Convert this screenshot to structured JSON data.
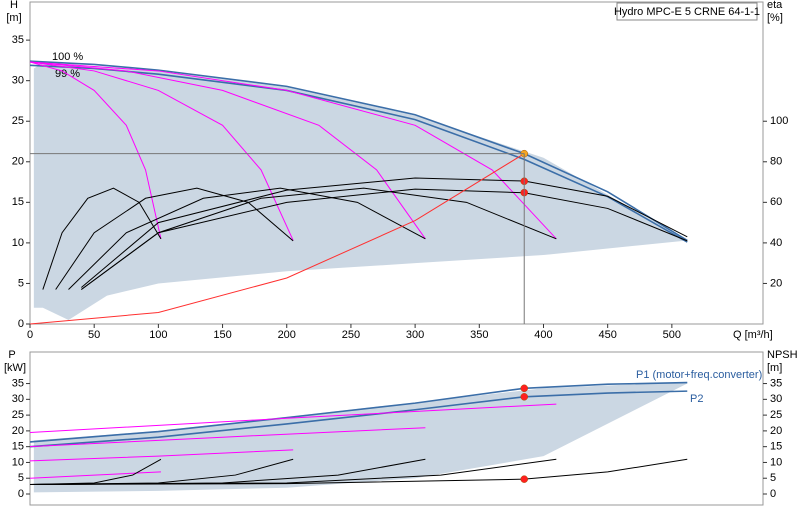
{
  "chart_data": [
    {
      "type": "line",
      "title": "Hydro MPC-E 5 CRNE 64-1-1",
      "ylabel": "H",
      "yunit": "[m]",
      "y2label": "eta",
      "y2unit": "[%]",
      "xlabel": "Q [m³/h]",
      "xlim": [
        0,
        571
      ],
      "xticks": [
        0,
        50,
        100,
        150,
        200,
        250,
        300,
        350,
        400,
        450,
        500
      ],
      "ylim": [
        0,
        39.7
      ],
      "yticks": [
        0,
        5,
        10,
        15,
        20,
        25,
        30,
        35
      ],
      "y2lim": [
        0,
        158.8
      ],
      "y2ticks": [
        20,
        40,
        60,
        80,
        100
      ],
      "duty_point": {
        "x": 385,
        "y": 21
      },
      "series": [
        {
          "style": "area",
          "color": "#cbd7e3",
          "x": [
            3,
            10,
            30,
            60,
            100,
            200,
            300,
            400,
            512
          ],
          "values": [
            31.5,
            32.2,
            32,
            31.6,
            31.2,
            29.2,
            25.7,
            20.5,
            10.3
          ],
          "lower": [
            2,
            2,
            0.5,
            3.5,
            5,
            6.5,
            7.5,
            8.5,
            10.3
          ]
        },
        {
          "name": "100 %",
          "style": "line",
          "color": "#3b6ea8",
          "x": [
            0,
            50,
            100,
            200,
            300,
            385,
            450,
            512
          ],
          "values": [
            32.4,
            32.0,
            31.3,
            29.3,
            25.8,
            21.0,
            16.3,
            10.3
          ]
        },
        {
          "name": "99 %",
          "style": "line",
          "color": "#3b6ea8",
          "x": [
            0,
            50,
            100,
            200,
            300,
            385,
            450,
            512
          ],
          "values": [
            31.9,
            31.5,
            30.8,
            28.8,
            25.2,
            20.3,
            15.7,
            10.1
          ]
        },
        {
          "style": "line",
          "color": "#ff00ff",
          "x": [
            0,
            25,
            50,
            75,
            90,
            102
          ],
          "values": [
            32.3,
            31.2,
            28.8,
            24.5,
            19,
            10.5
          ]
        },
        {
          "style": "line",
          "color": "#ff00ff",
          "x": [
            0,
            50,
            100,
            150,
            180,
            205
          ],
          "values": [
            32.3,
            31.2,
            28.8,
            24.5,
            19,
            10.3
          ]
        },
        {
          "style": "line",
          "color": "#ff00ff",
          "x": [
            0,
            75,
            150,
            225,
            270,
            308
          ],
          "values": [
            32.3,
            31.2,
            28.8,
            24.5,
            19,
            10.5
          ]
        },
        {
          "style": "line",
          "color": "#ff00ff",
          "x": [
            0,
            100,
            200,
            300,
            360,
            410
          ],
          "values": [
            32.3,
            31.2,
            28.8,
            24.5,
            19,
            10.5
          ]
        },
        {
          "style": "line",
          "color": "#000000",
          "axis": "y2",
          "x": [
            10,
            25,
            45,
            65,
            85,
            102
          ],
          "values": [
            17,
            45,
            62,
            67,
            60,
            42
          ]
        },
        {
          "style": "line",
          "color": "#000000",
          "axis": "y2",
          "x": [
            20,
            50,
            90,
            130,
            170,
            205
          ],
          "values": [
            17,
            45,
            62,
            67,
            60,
            41
          ]
        },
        {
          "style": "line",
          "color": "#000000",
          "axis": "y2",
          "x": [
            30,
            75,
            135,
            195,
            255,
            308
          ],
          "values": [
            17,
            45,
            62,
            67,
            60,
            42
          ]
        },
        {
          "style": "line",
          "color": "#000000",
          "axis": "y2",
          "x": [
            40,
            100,
            180,
            260,
            340,
            410
          ],
          "values": [
            17,
            45,
            62,
            67,
            60,
            42
          ]
        },
        {
          "style": "line",
          "color": "#000000",
          "axis": "y2",
          "x": [
            40,
            100,
            200,
            300,
            385,
            450,
            512
          ],
          "values": [
            18,
            50,
            66,
            72,
            70.5,
            63,
            43
          ]
        },
        {
          "style": "line",
          "color": "#000000",
          "axis": "y2",
          "x": [
            40,
            100,
            200,
            300,
            385,
            450,
            512
          ],
          "values": [
            17,
            45,
            60,
            66.5,
            64.7,
            57,
            41
          ]
        },
        {
          "style": "line",
          "color": "#ff3030",
          "x": [
            0,
            100,
            200,
            300,
            385
          ],
          "values": [
            0,
            1.42,
            5.67,
            12.75,
            21
          ]
        },
        {
          "style": "points",
          "color": "#f5a623",
          "x": [
            385
          ],
          "values": [
            21
          ]
        },
        {
          "style": "points",
          "color": "#ff2020",
          "x": [
            385,
            385
          ],
          "values": [
            17.6,
            16.2
          ]
        }
      ]
    },
    {
      "type": "line",
      "ylabel": "P",
      "yunit": "[kW]",
      "y2label": "NPSH",
      "y2unit": "[m]",
      "xlim": [
        0,
        571
      ],
      "ylim": [
        0,
        45
      ],
      "yticks": [
        0,
        5,
        10,
        15,
        20,
        25,
        30,
        35
      ],
      "y2lim": [
        0,
        45
      ],
      "y2ticks": [
        0,
        5,
        10,
        15,
        20,
        25,
        30,
        35
      ],
      "series": [
        {
          "style": "area",
          "color": "#cbd7e3",
          "x": [
            3,
            100,
            200,
            300,
            400,
            512
          ],
          "values": [
            17,
            20,
            24.5,
            29,
            33.5,
            35.5
          ],
          "lower": [
            0.5,
            1,
            2,
            5,
            12,
            35
          ]
        },
        {
          "name": "P1 (motor+freq.converter)",
          "style": "line",
          "color": "#3b6ea8",
          "x": [
            0,
            100,
            200,
            300,
            385,
            450,
            512
          ],
          "values": [
            16.5,
            19.8,
            24.2,
            28.8,
            33.5,
            34.8,
            35.3
          ]
        },
        {
          "name": "P2",
          "style": "line",
          "color": "#3b6ea8",
          "x": [
            0,
            100,
            200,
            300,
            385,
            450,
            512
          ],
          "values": [
            15,
            18,
            22.2,
            26.7,
            30.8,
            32,
            32.6
          ]
        },
        {
          "style": "line",
          "color": "#ff00ff",
          "x": [
            0,
            50,
            102
          ],
          "values": [
            5,
            6,
            7
          ]
        },
        {
          "style": "line",
          "color": "#ff00ff",
          "x": [
            0,
            100,
            205
          ],
          "values": [
            10.5,
            12,
            14
          ]
        },
        {
          "style": "line",
          "color": "#ff00ff",
          "x": [
            0,
            150,
            308
          ],
          "values": [
            15,
            18,
            21
          ]
        },
        {
          "style": "line",
          "color": "#ff00ff",
          "x": [
            0,
            200,
            410
          ],
          "values": [
            19.5,
            24,
            28.5
          ]
        },
        {
          "style": "line",
          "color": "#000000",
          "axis": "y2",
          "x": [
            0,
            50,
            80,
            102
          ],
          "values": [
            3,
            3.5,
            6,
            11
          ]
        },
        {
          "style": "line",
          "color": "#000000",
          "axis": "y2",
          "x": [
            0,
            100,
            160,
            205
          ],
          "values": [
            3,
            3.5,
            6,
            11
          ]
        },
        {
          "style": "line",
          "color": "#000000",
          "axis": "y2",
          "x": [
            0,
            150,
            240,
            308
          ],
          "values": [
            3,
            3.5,
            6,
            11
          ]
        },
        {
          "style": "line",
          "color": "#000000",
          "axis": "y2",
          "x": [
            0,
            200,
            320,
            410
          ],
          "values": [
            3,
            3.5,
            6,
            11
          ]
        },
        {
          "style": "line",
          "color": "#000000",
          "axis": "y2",
          "x": [
            0,
            200,
            385,
            450,
            512
          ],
          "values": [
            3,
            3.3,
            4.7,
            7,
            11
          ]
        },
        {
          "style": "points",
          "color": "#ff2020",
          "x": [
            385,
            385
          ],
          "values": [
            33.5,
            30.8
          ]
        },
        {
          "style": "points",
          "color": "#ff2020",
          "axis": "y2",
          "x": [
            385
          ],
          "values": [
            4.7
          ]
        }
      ]
    }
  ]
}
